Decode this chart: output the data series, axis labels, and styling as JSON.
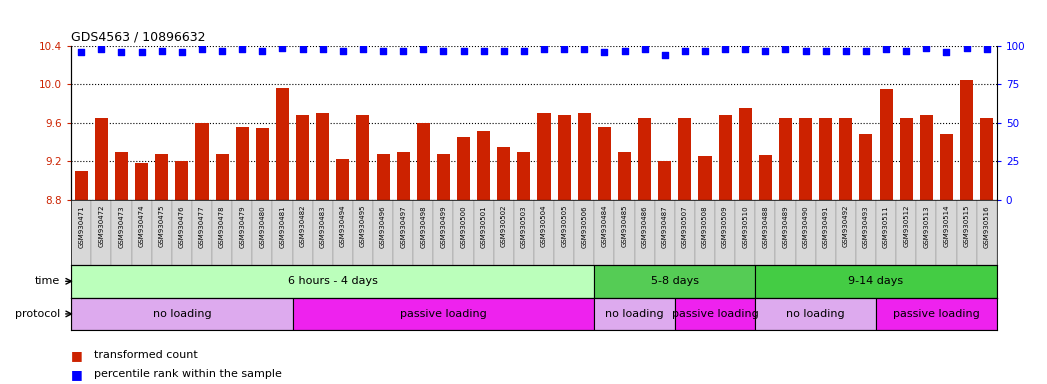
{
  "title": "GDS4563 / 10896632",
  "samples": [
    "GSM930471",
    "GSM930472",
    "GSM930473",
    "GSM930474",
    "GSM930475",
    "GSM930476",
    "GSM930477",
    "GSM930478",
    "GSM930479",
    "GSM930480",
    "GSM930481",
    "GSM930482",
    "GSM930483",
    "GSM930494",
    "GSM930495",
    "GSM930496",
    "GSM930497",
    "GSM930498",
    "GSM930499",
    "GSM930500",
    "GSM930501",
    "GSM930502",
    "GSM930503",
    "GSM930504",
    "GSM930505",
    "GSM930506",
    "GSM930484",
    "GSM930485",
    "GSM930486",
    "GSM930487",
    "GSM930507",
    "GSM930508",
    "GSM930509",
    "GSM930510",
    "GSM930488",
    "GSM930489",
    "GSM930490",
    "GSM930491",
    "GSM930492",
    "GSM930493",
    "GSM930511",
    "GSM930512",
    "GSM930513",
    "GSM930514",
    "GSM930515",
    "GSM930516"
  ],
  "bar_values": [
    9.1,
    9.65,
    9.3,
    9.18,
    9.28,
    9.2,
    9.6,
    9.28,
    9.56,
    9.55,
    9.96,
    9.68,
    9.7,
    9.22,
    9.68,
    9.28,
    9.3,
    9.6,
    9.28,
    9.45,
    9.52,
    9.35,
    9.3,
    9.7,
    9.68,
    9.7,
    9.56,
    9.3,
    9.65,
    9.2,
    9.65,
    9.25,
    9.68,
    9.75,
    9.27,
    9.65,
    9.65,
    9.65,
    9.65,
    9.48,
    9.95,
    9.65,
    9.68,
    9.48,
    10.05,
    9.65
  ],
  "percentile_values": [
    96,
    98,
    96,
    96,
    97,
    96,
    98,
    97,
    98,
    97,
    99,
    98,
    98,
    97,
    98,
    97,
    97,
    98,
    97,
    97,
    97,
    97,
    97,
    98,
    98,
    98,
    96,
    97,
    98,
    94,
    97,
    97,
    98,
    98,
    97,
    98,
    97,
    97,
    97,
    97,
    98,
    97,
    99,
    96,
    99,
    98
  ],
  "ylim_left": [
    8.8,
    10.4
  ],
  "ylim_right": [
    0,
    100
  ],
  "yticks_left": [
    8.8,
    9.2,
    9.6,
    10.0,
    10.4
  ],
  "yticks_right": [
    0,
    25,
    50,
    75,
    100
  ],
  "bar_color": "#cc2200",
  "dot_color": "#0000ff",
  "plot_bg_color": "#ffffff",
  "xtick_bg_color": "#d8d8d8",
  "time_groups": [
    {
      "label": "6 hours - 4 days",
      "start": 0,
      "end": 26,
      "color": "#bbffbb"
    },
    {
      "label": "5-8 days",
      "start": 26,
      "end": 34,
      "color": "#55cc55"
    },
    {
      "label": "9-14 days",
      "start": 34,
      "end": 46,
      "color": "#44cc44"
    }
  ],
  "protocol_groups": [
    {
      "label": "no loading",
      "start": 0,
      "end": 11,
      "color": "#ddaaee"
    },
    {
      "label": "passive loading",
      "start": 11,
      "end": 26,
      "color": "#ee22ee"
    },
    {
      "label": "no loading",
      "start": 26,
      "end": 30,
      "color": "#ddaaee"
    },
    {
      "label": "passive loading",
      "start": 30,
      "end": 34,
      "color": "#ee22ee"
    },
    {
      "label": "no loading",
      "start": 34,
      "end": 40,
      "color": "#ddaaee"
    },
    {
      "label": "passive loading",
      "start": 40,
      "end": 46,
      "color": "#ee22ee"
    }
  ],
  "legend_bar_label": "transformed count",
  "legend_dot_label": "percentile rank within the sample"
}
